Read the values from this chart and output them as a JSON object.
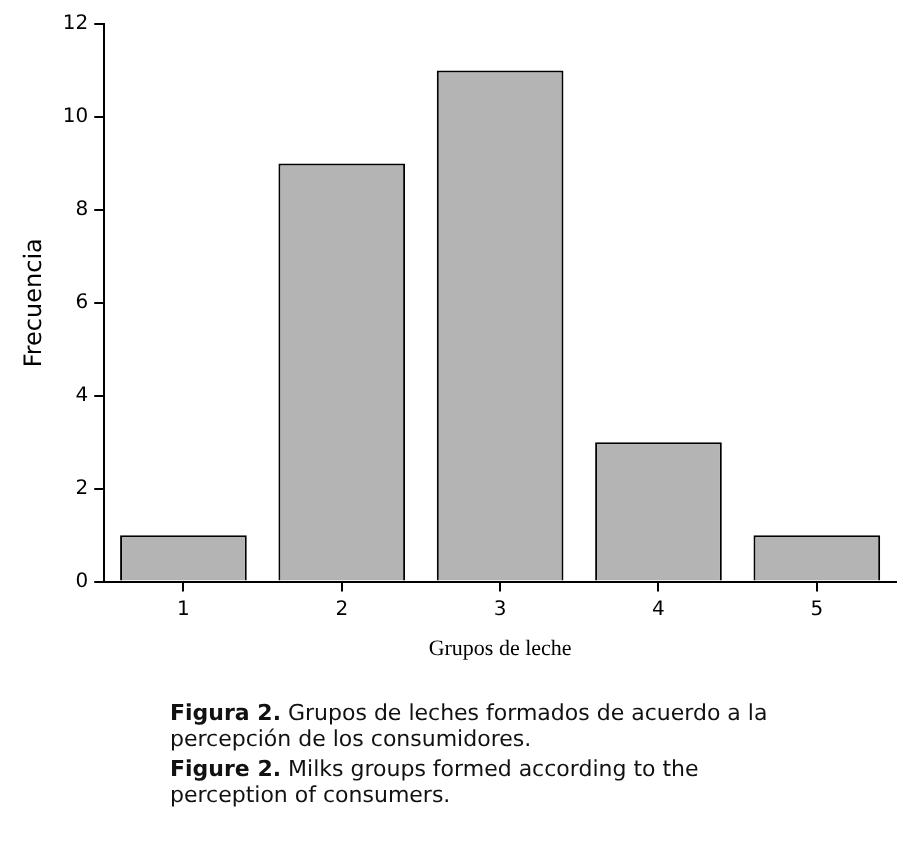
{
  "chart_data": {
    "type": "bar",
    "xlabel": "Grupos de leche",
    "ylabel": "Frecuencia",
    "categories": [
      "1",
      "2",
      "3",
      "4",
      "5"
    ],
    "values": [
      1,
      9,
      11,
      3,
      1
    ],
    "color": "#b4b4b4",
    "ylim": [
      0,
      12
    ],
    "yticks": [
      0,
      2,
      4,
      6,
      8,
      10,
      12
    ],
    "grid": false,
    "legend": false,
    "annotations": [
      "Figura 2.  Grupos de leches formados de acuerdo a la percepción de los consumidores.",
      "Figure 2.  Milks groups formed according to the perception of consumers."
    ]
  }
}
